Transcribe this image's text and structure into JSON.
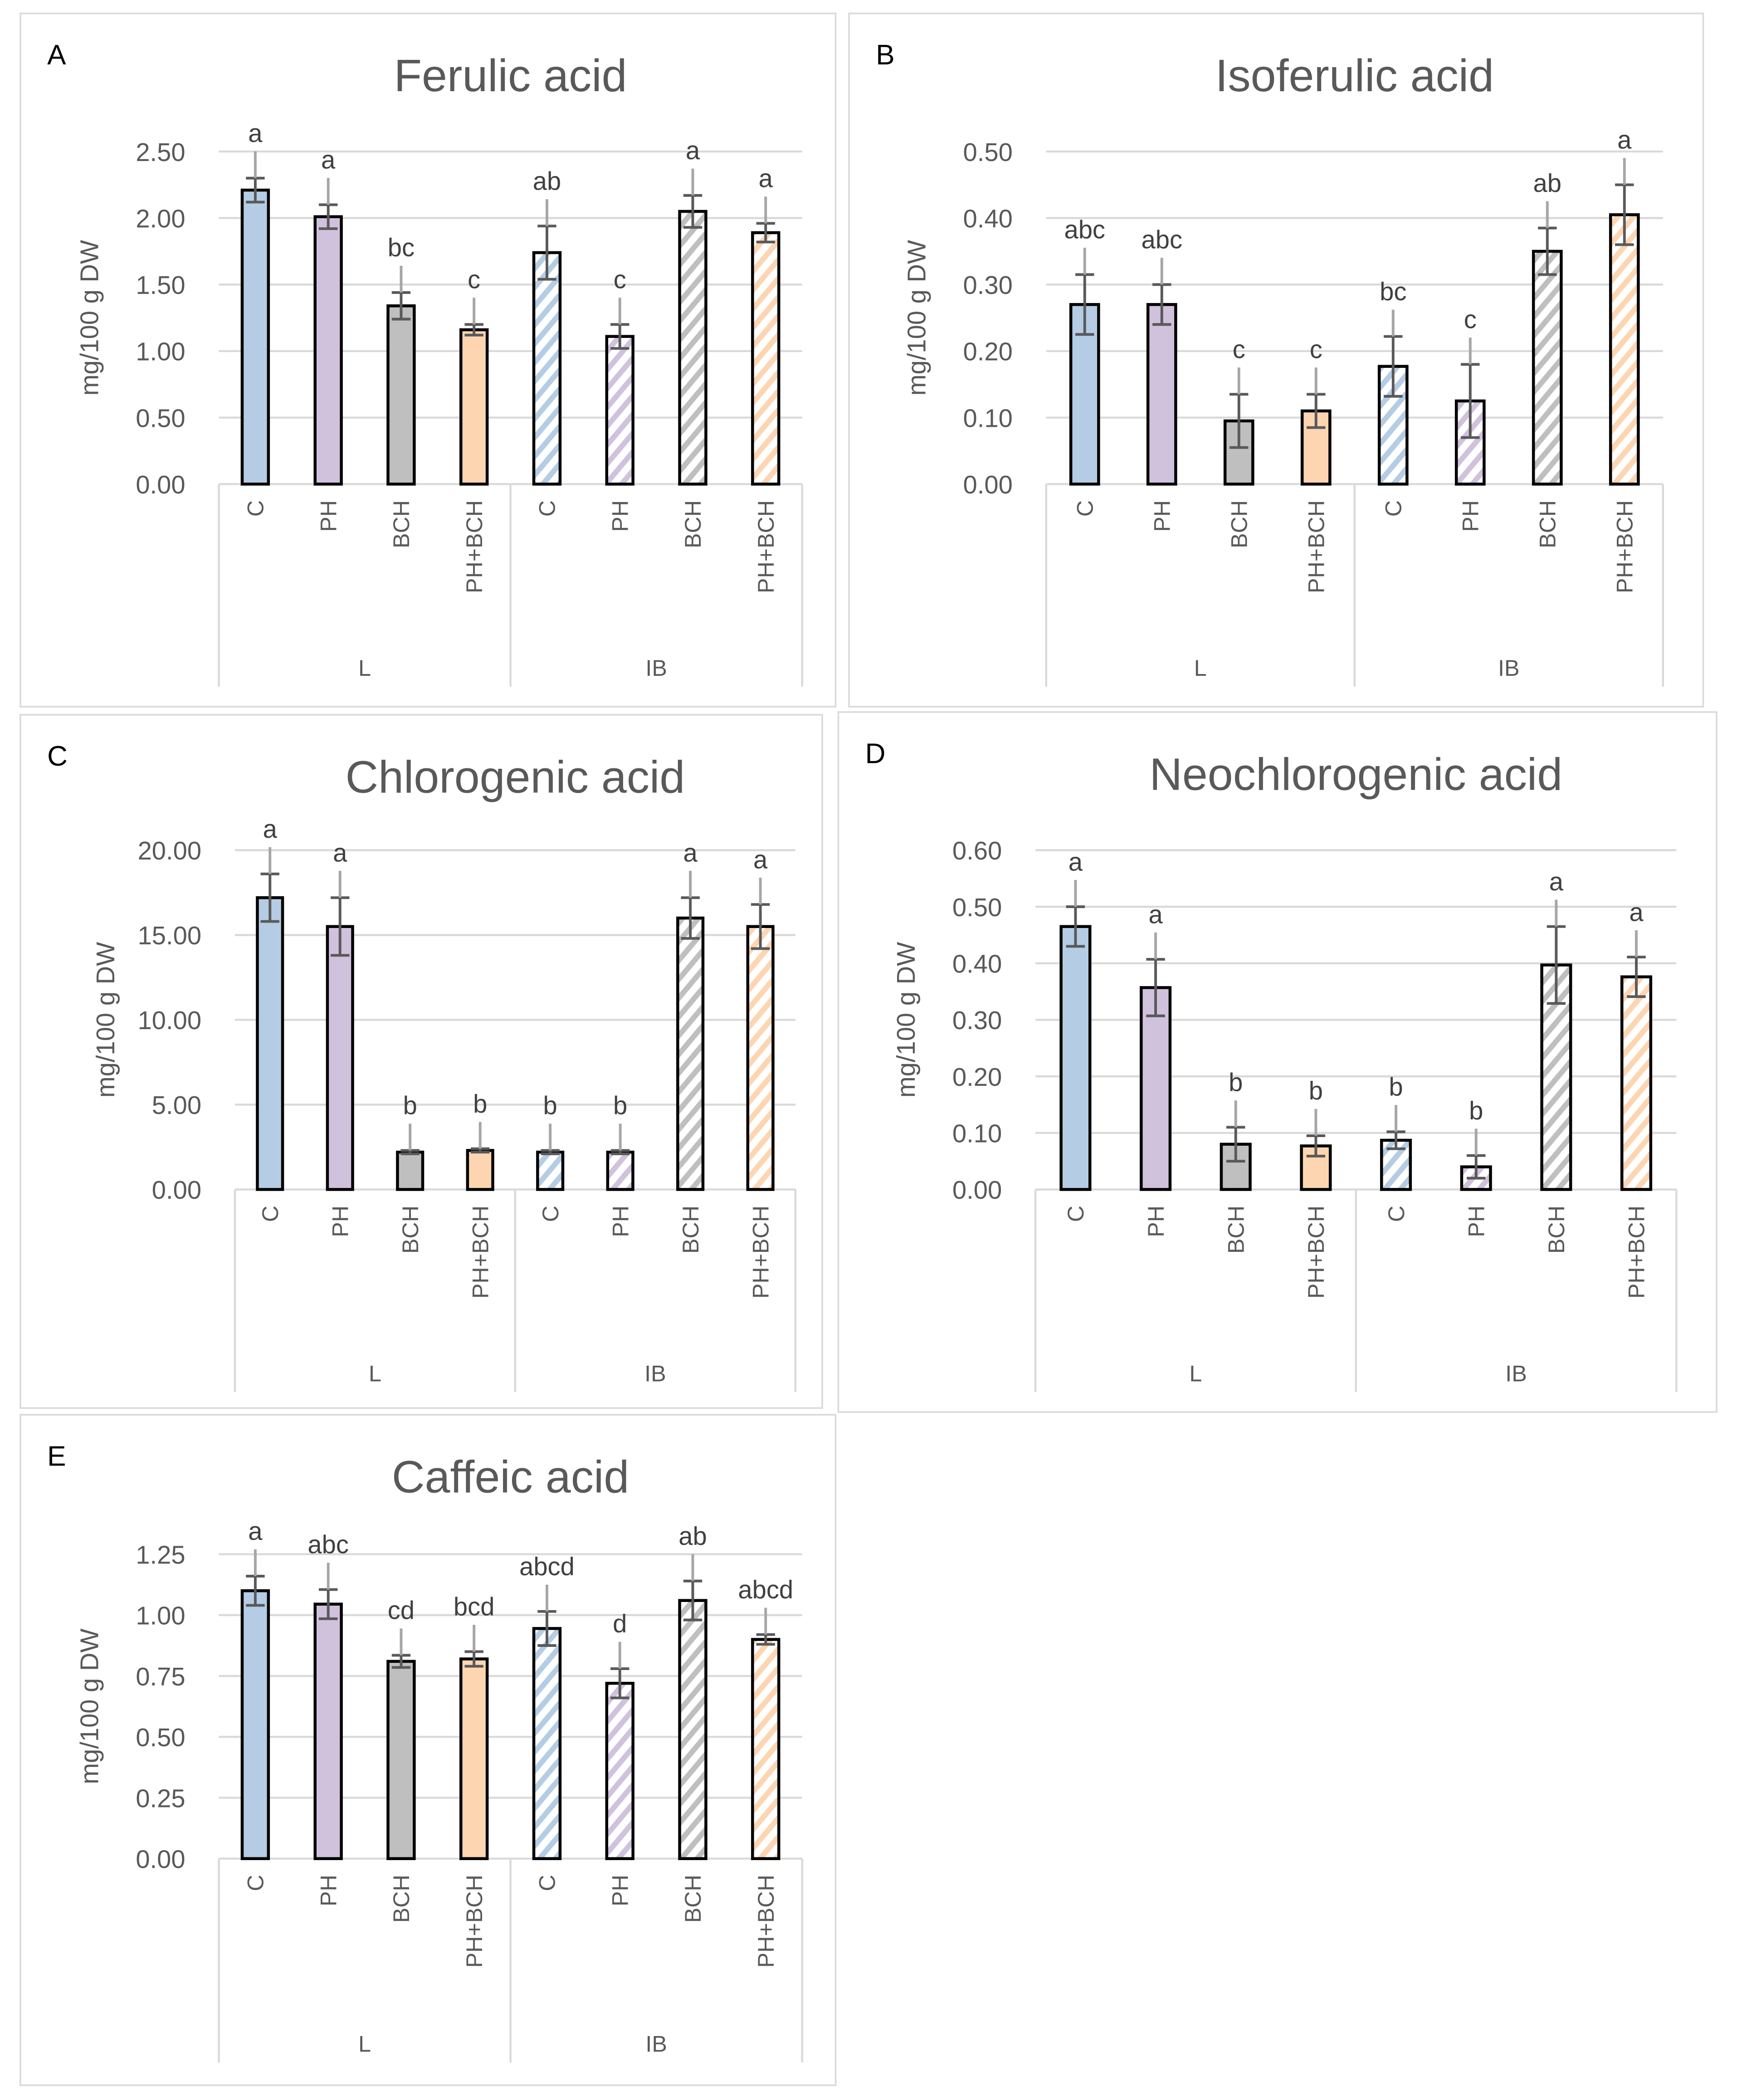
{
  "colors": {
    "C": "#b4cde4",
    "PH": "#d0c2dd",
    "BCH": "#bfbfbf",
    "PH+BCH": "#fdd5b1",
    "outline": "#000000",
    "error": "#595959"
  },
  "chart_data": [
    {
      "panel": "A",
      "type": "bar",
      "title": "Ferulic acid",
      "ylabel": "mg/100 g DW",
      "groups": [
        "L",
        "IB"
      ],
      "categories": [
        "C",
        "PH",
        "BCH",
        "PH+BCH",
        "C",
        "PH",
        "BCH",
        "PH+BCH"
      ],
      "values": [
        2.21,
        2.01,
        1.34,
        1.16,
        1.74,
        1.11,
        2.05,
        1.89
      ],
      "errors": [
        0.09,
        0.09,
        0.1,
        0.04,
        0.2,
        0.09,
        0.12,
        0.07
      ],
      "letters": [
        "a",
        "a",
        "bc",
        "c",
        "ab",
        "c",
        "a",
        "a"
      ],
      "ylim": [
        0,
        2.5
      ],
      "yticks": [
        "0.00",
        "0.50",
        "1.00",
        "1.50",
        "2.00",
        "2.50"
      ],
      "grid": true
    },
    {
      "panel": "B",
      "type": "bar",
      "title": "Isoferulic acid",
      "ylabel": "mg/100 g DW",
      "groups": [
        "L",
        "IB"
      ],
      "categories": [
        "C",
        "PH",
        "BCH",
        "PH+BCH",
        "C",
        "PH",
        "BCH",
        "PH+BCH"
      ],
      "values": [
        0.27,
        0.27,
        0.095,
        0.11,
        0.177,
        0.125,
        0.35,
        0.405
      ],
      "errors": [
        0.045,
        0.03,
        0.04,
        0.025,
        0.045,
        0.055,
        0.035,
        0.045
      ],
      "letters": [
        "abc",
        "abc",
        "c",
        "c",
        "bc",
        "c",
        "ab",
        "a"
      ],
      "ylim": [
        0,
        0.5
      ],
      "yticks": [
        "0.00",
        "0.10",
        "0.20",
        "0.30",
        "0.40",
        "0.50"
      ],
      "grid": true
    },
    {
      "panel": "C",
      "type": "bar",
      "title": "Chlorogenic acid",
      "ylabel": "mg/100 g DW",
      "groups": [
        "L",
        "IB"
      ],
      "categories": [
        "C",
        "PH",
        "BCH",
        "PH+BCH",
        "C",
        "PH",
        "BCH",
        "PH+BCH"
      ],
      "values": [
        17.2,
        15.5,
        2.2,
        2.3,
        2.2,
        2.2,
        16.0,
        15.5
      ],
      "errors": [
        1.4,
        1.7,
        0.1,
        0.1,
        0.1,
        0.1,
        1.2,
        1.3
      ],
      "letters": [
        "a",
        "a",
        "b",
        "b",
        "b",
        "b",
        "a",
        "a"
      ],
      "ylim": [
        0,
        20
      ],
      "yticks": [
        "0.00",
        "5.00",
        "10.00",
        "15.00",
        "20.00"
      ],
      "grid": true
    },
    {
      "panel": "D",
      "type": "bar",
      "title": "Neochlorogenic acid",
      "ylabel": "mg/100 g DW",
      "groups": [
        "L",
        "IB"
      ],
      "categories": [
        "C",
        "PH",
        "BCH",
        "PH+BCH",
        "C",
        "PH",
        "BCH",
        "PH+BCH"
      ],
      "values": [
        0.465,
        0.357,
        0.08,
        0.077,
        0.087,
        0.04,
        0.397,
        0.376
      ],
      "errors": [
        0.035,
        0.05,
        0.03,
        0.018,
        0.015,
        0.02,
        0.068,
        0.035
      ],
      "letters": [
        "a",
        "a",
        "b",
        "b",
        "b",
        "b",
        "a",
        "a"
      ],
      "ylim": [
        0,
        0.6
      ],
      "yticks": [
        "0.00",
        "0.10",
        "0.20",
        "0.30",
        "0.40",
        "0.50",
        "0.60"
      ],
      "grid": true
    },
    {
      "panel": "E",
      "type": "bar",
      "title": "Caffeic acid",
      "ylabel": "mg/100 g DW",
      "groups": [
        "L",
        "IB"
      ],
      "categories": [
        "C",
        "PH",
        "BCH",
        "PH+BCH",
        "C",
        "PH",
        "BCH",
        "PH+BCH"
      ],
      "values": [
        1.1,
        1.045,
        0.81,
        0.82,
        0.945,
        0.72,
        1.06,
        0.9
      ],
      "errors": [
        0.06,
        0.06,
        0.025,
        0.03,
        0.07,
        0.06,
        0.08,
        0.02
      ],
      "letters": [
        "a",
        "abc",
        "cd",
        "bcd",
        "abcd",
        "d",
        "ab",
        "abcd"
      ],
      "ylim": [
        0,
        1.25
      ],
      "yticks": [
        "0.00",
        "0.25",
        "0.50",
        "0.75",
        "1.00",
        "1.25"
      ],
      "grid": true
    }
  ]
}
